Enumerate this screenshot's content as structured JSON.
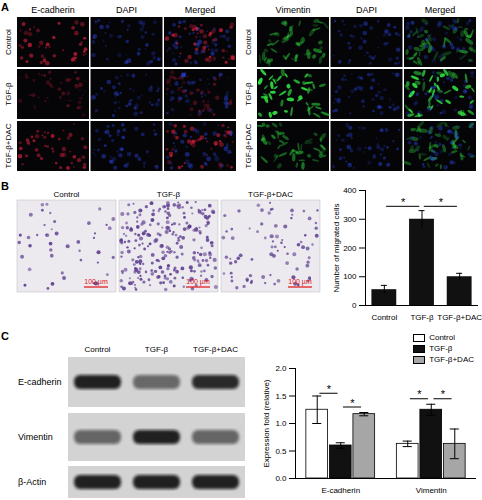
{
  "panels": {
    "A": {
      "label": "A",
      "left": {
        "columns": [
          "E-cadherin",
          "DAPI",
          "Merged"
        ]
      },
      "right": {
        "columns": [
          "Vimentin",
          "DAPI",
          "Merged"
        ]
      },
      "rows": [
        "Control",
        "TGF-β",
        "TGF-β+DAC"
      ]
    },
    "B": {
      "label": "B",
      "images": [
        "Control",
        "TGF-β",
        "TGF-β+DAC"
      ],
      "scale_bar": "100 µm"
    },
    "C": {
      "label": "C",
      "blot_columns": [
        "Control",
        "TGF-β",
        "TGF-β+DAC"
      ],
      "blot_rows": [
        "E-cadherin",
        "Vimentin",
        "β-Actin"
      ]
    }
  },
  "chart_data": [
    {
      "type": "bar",
      "y_label": "Number of migrated cells",
      "categories": [
        "Control",
        "TGF-β",
        "TGF-β+DAC"
      ],
      "values": [
        55,
        300,
        100
      ],
      "errors": [
        15,
        30,
        12
      ],
      "color": "#111111",
      "ylim": [
        0,
        400
      ],
      "yticks": [
        0,
        100,
        200,
        300,
        400
      ],
      "annotations": [
        {
          "text": "*",
          "from": "Control",
          "to": "TGF-β",
          "y": 345
        },
        {
          "text": "*",
          "from": "TGF-β",
          "to": "TGF-β+DAC",
          "y": 345
        }
      ]
    },
    {
      "type": "bar",
      "y_label": "Expression fold (relative)",
      "categories": [
        "E-cadherin",
        "Vimentin"
      ],
      "series": [
        {
          "name": "Control",
          "color": "#ffffff",
          "values": [
            1.25,
            0.63
          ],
          "errors": [
            0.25,
            0.05
          ]
        },
        {
          "name": "TGF-β",
          "color": "#111111",
          "values": [
            0.6,
            1.25
          ],
          "errors": [
            0.05,
            0.1
          ]
        },
        {
          "name": "TGF-β+DAC",
          "color": "#a6a6a6",
          "values": [
            1.17,
            0.63
          ],
          "errors": [
            0.03,
            0.27
          ]
        }
      ],
      "ylim": [
        0,
        2
      ],
      "yticks": [
        {
          "value": 0,
          "label": "0.0"
        },
        {
          "value": 0.5,
          "label": "0.5"
        },
        {
          "value": 1,
          "label": "1.0"
        },
        {
          "value": 1.5,
          "label": "1.5"
        },
        {
          "value": 2,
          "label": "2.0"
        }
      ],
      "legend": "top-right",
      "annotations": [
        {
          "text": "*",
          "category": "E-cadherin",
          "from": "Control",
          "to": "TGF-β",
          "y": 1.55
        },
        {
          "text": "*",
          "category": "E-cadherin",
          "from": "TGF-β",
          "to": "TGF-β+DAC",
          "y": 1.3
        },
        {
          "text": "*",
          "category": "Vimentin",
          "from": "Control",
          "to": "TGF-β",
          "y": 1.45
        },
        {
          "text": "*",
          "category": "Vimentin",
          "from": "TGF-β",
          "to": "TGF-β+DAC",
          "y": 1.45
        }
      ]
    }
  ]
}
